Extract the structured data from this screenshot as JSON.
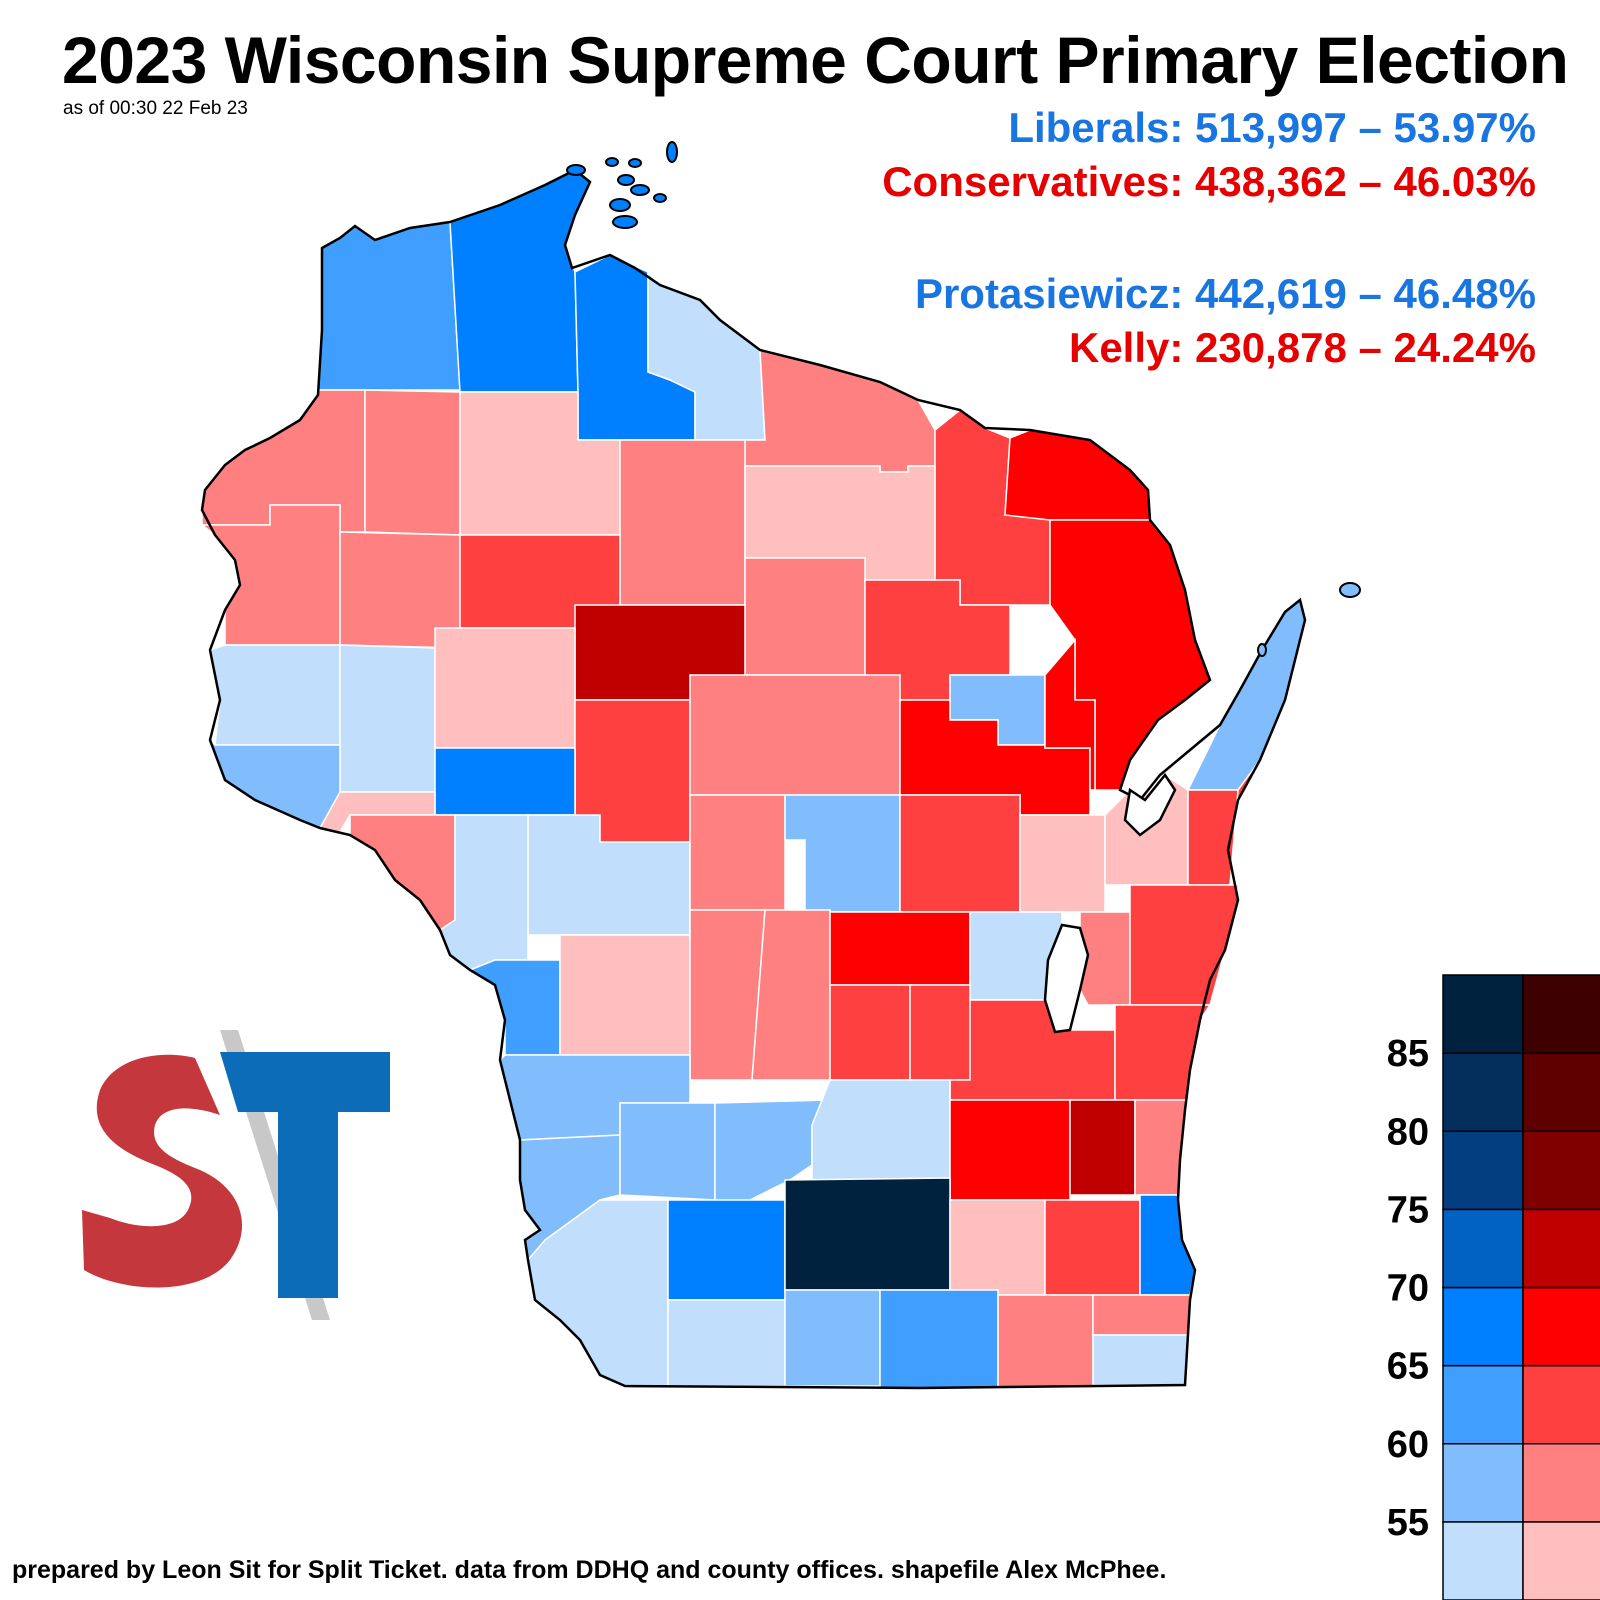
{
  "title": "2023 Wisconsin Supreme Court Primary Election",
  "subtitle": "as of 00:30 22 Feb 23",
  "results": {
    "liberals": "Liberals: 513,997 – 53.97%",
    "conservatives": "Conservatives: 438,362 – 46.03%",
    "protasiewicz": "Protasiewicz: 442,619 – 46.48%",
    "kelly": "Kelly: 230,878 – 24.24%"
  },
  "legend": {
    "ticks": [
      "85",
      "80",
      "75",
      "70",
      "65",
      "60",
      "55"
    ],
    "blue_scale": [
      "#c1dffd",
      "#81bdfd",
      "#409efe",
      "#0080ff",
      "#0162c3",
      "#023e80",
      "#042f5d",
      "#00223e"
    ],
    "red_scale": [
      "#ffbfbf",
      "#ff8080",
      "#ff4040",
      "#ff0000",
      "#c00000",
      "#800000",
      "#5e0000",
      "#3e0000"
    ]
  },
  "logo": {
    "letters": "S/T",
    "colors": [
      "#c3373d",
      "#0c6cb8"
    ]
  },
  "footer": "prepared by Leon Sit for Split Ticket. data from DDHQ and county offices. shapefile Alex McPhee."
}
